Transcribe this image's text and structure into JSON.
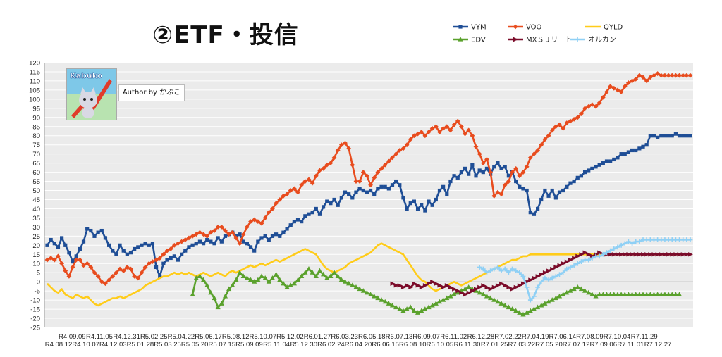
{
  "title": "②ETF・投信",
  "author": "Author by かぶこ",
  "logo_text": "Kabuko",
  "chart_data": {
    "type": "line",
    "ylim": [
      -25,
      120
    ],
    "ytick_step": 5,
    "grid": true,
    "legend_position": "top-right",
    "x_top": [
      "R4.09.09",
      "R4.11.05",
      "R4.12.31",
      "R5.02.25",
      "R5.04.22",
      "R5.06.17",
      "R5.08.12",
      "R5.10.07",
      "R5.12.02",
      "R6.01.27",
      "R6.03.23",
      "R6.05.18",
      "R6.07.13",
      "R6.09.07",
      "R6.11.02",
      "R6.12.28",
      "R7.02.22",
      "R7.04.19",
      "R7.06.14",
      "R7.08.09",
      "R7.10.04",
      "R7.11.29"
    ],
    "x_bottom": [
      "R4.08.12",
      "R4.10.07",
      "R4.12.03",
      "R5.01.28",
      "R5.03.25",
      "R5.05.20",
      "R5.07.15",
      "R5.09.09",
      "R5.11.04",
      "R5.12.30",
      "R6.02.24",
      "R6.04.20",
      "R6.06.15",
      "R6.08.10",
      "R6.10.05",
      "R6.11.30",
      "R7.01.25",
      "R7.03.22",
      "R7.05.20",
      "R7.07.12",
      "R7.09.06",
      "R7.11.01",
      "R7.12.27"
    ],
    "n_points": 178,
    "series": [
      {
        "name": "VYM",
        "color": "#1f4e96",
        "marker": "square",
        "start": 0,
        "values": [
          20,
          23,
          21,
          19,
          24,
          20,
          16,
          11,
          14,
          18,
          22,
          29,
          28,
          25,
          27,
          28,
          24,
          20,
          17,
          15,
          20,
          17,
          15,
          16,
          18,
          19,
          20,
          21,
          20,
          21,
          8,
          3,
          10,
          12,
          13,
          14,
          12,
          15,
          17,
          19,
          20,
          21,
          22,
          21,
          23,
          22,
          21,
          24,
          22,
          25,
          26,
          27,
          25,
          26,
          22,
          21,
          19,
          17,
          22,
          24,
          25,
          23,
          25,
          26,
          25,
          27,
          29,
          31,
          33,
          34,
          33,
          36,
          37,
          38,
          40,
          37,
          41,
          44,
          43,
          45,
          42,
          46,
          49,
          48,
          46,
          49,
          51,
          50,
          49,
          50,
          48,
          51,
          52,
          52,
          51,
          53,
          55,
          53,
          46,
          40,
          43,
          44,
          40,
          42,
          39,
          44,
          42,
          45,
          50,
          52,
          48,
          55,
          58,
          57,
          60,
          62,
          59,
          64,
          58,
          61,
          60,
          62,
          59,
          63,
          65,
          62,
          63,
          58,
          60,
          55,
          52,
          51,
          50,
          38,
          37,
          40,
          45,
          50,
          47,
          50,
          46,
          49,
          50,
          52,
          54,
          55,
          57,
          58,
          60,
          61,
          62,
          63,
          64,
          65,
          66,
          66,
          67,
          68,
          70,
          70,
          71,
          72,
          72,
          73,
          74,
          75,
          80,
          80,
          79,
          80,
          80,
          80,
          80,
          81,
          80,
          80,
          80,
          80
        ]
      },
      {
        "name": "VOO",
        "color": "#e84c1e",
        "marker": "diamond",
        "start": 0,
        "values": [
          12,
          13,
          12,
          14,
          10,
          6,
          3,
          8,
          12,
          12,
          9,
          10,
          8,
          5,
          3,
          0,
          -1,
          1,
          3,
          5,
          7,
          6,
          8,
          7,
          3,
          2,
          5,
          8,
          10,
          11,
          12,
          13,
          15,
          17,
          18,
          20,
          21,
          22,
          23,
          24,
          25,
          26,
          27,
          26,
          25,
          27,
          28,
          30,
          30,
          28,
          26,
          27,
          24,
          21,
          26,
          30,
          33,
          34,
          33,
          32,
          35,
          38,
          40,
          43,
          45,
          47,
          48,
          50,
          51,
          49,
          53,
          55,
          56,
          54,
          58,
          61,
          62,
          64,
          65,
          68,
          72,
          75,
          76,
          73,
          64,
          55,
          55,
          60,
          58,
          53,
          57,
          60,
          62,
          64,
          66,
          68,
          70,
          72,
          73,
          75,
          78,
          80,
          81,
          82,
          80,
          82,
          84,
          85,
          82,
          84,
          85,
          83,
          86,
          88,
          85,
          81,
          83,
          80,
          74,
          70,
          65,
          67,
          60,
          47,
          49,
          48,
          53,
          55,
          60,
          62,
          58,
          60,
          63,
          68,
          70,
          72,
          75,
          78,
          80,
          83,
          85,
          86,
          84,
          87,
          88,
          89,
          90,
          92,
          95,
          96,
          97,
          96,
          98,
          101,
          104,
          107,
          106,
          105,
          104,
          107,
          109,
          110,
          111,
          113,
          112,
          110,
          112,
          113,
          114,
          113,
          113,
          113,
          113,
          113,
          113,
          113,
          113,
          113
        ]
      },
      {
        "name": "QYLD",
        "color": "#ffcc1a",
        "marker": "none",
        "start": 0,
        "values": [
          -1,
          -3,
          -5,
          -6,
          -4,
          -7,
          -8,
          -9,
          -7,
          -8,
          -9,
          -8,
          -10,
          -12,
          -13,
          -12,
          -11,
          -10,
          -9,
          -9,
          -8,
          -9,
          -8,
          -7,
          -6,
          -5,
          -4,
          -2,
          -1,
          0,
          1,
          2,
          3,
          3,
          4,
          5,
          4,
          5,
          4,
          5,
          4,
          3,
          4,
          5,
          4,
          3,
          4,
          5,
          4,
          3,
          5,
          6,
          5,
          6,
          7,
          8,
          9,
          8,
          9,
          10,
          9,
          10,
          11,
          12,
          11,
          12,
          13,
          14,
          15,
          16,
          17,
          18,
          17,
          16,
          15,
          12,
          9,
          7,
          6,
          5,
          6,
          7,
          8,
          10,
          11,
          12,
          13,
          14,
          15,
          16,
          18,
          20,
          21,
          20,
          19,
          18,
          17,
          16,
          15,
          12,
          9,
          6,
          3,
          1,
          0,
          -2,
          -4,
          -5,
          -4,
          -3,
          -2,
          -1,
          0,
          -1,
          -2,
          -1,
          0,
          1,
          2,
          3,
          4,
          5,
          6,
          7,
          8,
          9,
          10,
          11,
          12,
          12,
          13,
          14,
          14,
          15,
          15,
          15,
          15,
          15,
          15,
          15,
          15,
          15,
          15,
          15,
          15,
          15,
          15,
          15,
          15,
          15,
          15,
          15,
          15,
          15,
          15,
          15,
          15,
          15,
          15,
          15,
          15,
          15,
          15,
          15,
          15,
          15,
          15,
          15,
          15,
          15,
          15,
          15,
          15,
          15,
          15,
          15
        ]
      },
      {
        "name": "EDV",
        "color": "#5aa12c",
        "marker": "triangle",
        "start": 40,
        "values": [
          -7,
          2,
          3,
          1,
          -2,
          -6,
          -9,
          -14,
          -12,
          -8,
          -4,
          -2,
          1,
          5,
          3,
          2,
          1,
          0,
          1,
          3,
          2,
          0,
          2,
          4,
          1,
          -1,
          -3,
          -2,
          -1,
          1,
          3,
          5,
          7,
          5,
          3,
          6,
          4,
          2,
          3,
          5,
          3,
          1,
          0,
          -1,
          -2,
          -3,
          -4,
          -5,
          -6,
          -7,
          -8,
          -9,
          -10,
          -11,
          -12,
          -13,
          -14,
          -15,
          -16,
          -15,
          -14,
          -16,
          -17,
          -16,
          -15,
          -14,
          -13,
          -12,
          -11,
          -10,
          -9,
          -8,
          -7,
          -6,
          -5,
          -4,
          -3,
          -4,
          -5,
          -6,
          -7,
          -8,
          -9,
          -10,
          -11,
          -12,
          -13,
          -14,
          -15,
          -16,
          -17,
          -18,
          -17,
          -16,
          -15,
          -14,
          -13,
          -12,
          -11,
          -10,
          -9,
          -8,
          -7,
          -6,
          -5,
          -4,
          -3,
          -4,
          -5,
          -6,
          -7,
          -8,
          -7,
          -7,
          -7,
          -7,
          -7,
          -7,
          -7,
          -7,
          -7,
          -7,
          -7,
          -7,
          -7,
          -7,
          -7,
          -7,
          -7,
          -7,
          -7,
          -7,
          -7,
          -7,
          -7
        ]
      },
      {
        "name": "MXＳＪリート",
        "color": "#7b0c2a",
        "marker": "arrow",
        "start": 95,
        "values": [
          -1,
          -2,
          -2,
          -3,
          -2,
          -3,
          -1,
          -2,
          -3,
          -2,
          -1,
          0,
          -1,
          -2,
          -3,
          -2,
          -3,
          -4,
          -5,
          -6,
          -7,
          -6,
          -5,
          -4,
          -3,
          -2,
          -3,
          -4,
          -3,
          -2,
          -1,
          -2,
          -3,
          -4,
          -3,
          -2,
          -1,
          0,
          1,
          2,
          3,
          4,
          5,
          6,
          7,
          8,
          9,
          10,
          11,
          12,
          13,
          14,
          15,
          16,
          15,
          14,
          15,
          16,
          15,
          15,
          15,
          15,
          15,
          15,
          15,
          15,
          15,
          15,
          15,
          15,
          15,
          15,
          15,
          15,
          15,
          15,
          15,
          15,
          15,
          15,
          15,
          15,
          15
        ]
      },
      {
        "name": "オルカン",
        "color": "#8fd0f5",
        "marker": "plus",
        "start": 119,
        "values": [
          8,
          7,
          5,
          6,
          7,
          8,
          6,
          7,
          5,
          7,
          6,
          5,
          3,
          -3,
          -10,
          -8,
          -3,
          0,
          2,
          1,
          2,
          3,
          4,
          5,
          7,
          8,
          9,
          10,
          11,
          12,
          12,
          13,
          14,
          14,
          15,
          16,
          17,
          18,
          19,
          20,
          21,
          22,
          21,
          22,
          22,
          23,
          23,
          23,
          23,
          23,
          23,
          23,
          23,
          23,
          23,
          23,
          23,
          23,
          23
        ]
      }
    ]
  }
}
